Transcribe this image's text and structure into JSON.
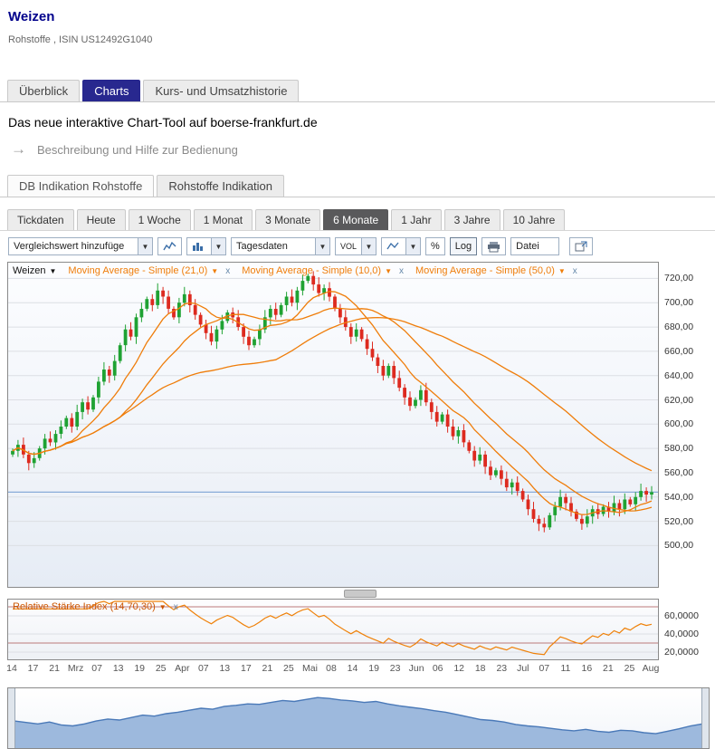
{
  "page": {
    "title": "Weizen",
    "subtitle": "Rohstoffe , ISIN US12492G1040"
  },
  "icons": {
    "dropdown_arrow": "▼",
    "close": "x",
    "help_arrow": "→"
  },
  "tabs": {
    "items": [
      {
        "label": "Überblick"
      },
      {
        "label": "Charts"
      },
      {
        "label": "Kurs- und Umsatzhistorie"
      }
    ]
  },
  "intro": {
    "headline": "Das neue interaktive Chart-Tool auf boerse-frankfurt.de",
    "help_link": "Beschreibung und Hilfe zur Bedienung"
  },
  "indication_tabs": {
    "items": [
      {
        "label": "DB Indikation Rohstoffe"
      },
      {
        "label": "Rohstoffe Indikation"
      }
    ]
  },
  "range_tabs": {
    "items": [
      "Tickdaten",
      "Heute",
      "1 Woche",
      "1 Monat",
      "3 Monate",
      "6 Monate",
      "1 Jahr",
      "3 Jahre",
      "10 Jahre"
    ],
    "active": "6 Monate"
  },
  "toolbar": {
    "compare_select": "Vergleichswert hinzufüge",
    "period_select": "Tagesdaten",
    "volume_select": "VOL",
    "percent_button": "%",
    "log_button": "Log",
    "file_button": "Datei"
  },
  "chart": {
    "legend_main": "Weizen",
    "legend_ma": [
      "Moving Average - Simple (21,0)",
      "Moving Average - Simple (10,0)",
      "Moving Average - Simple (50,0)"
    ]
  },
  "rsi": {
    "legend": "Relative Stärke Index (14,70,30)"
  },
  "colors": {
    "accent_tab": "#28288f",
    "range_active_bg": "#59595b",
    "candle_up": "#1fa233",
    "candle_down": "#dd2a1f",
    "ma_line": "#ef7d0a",
    "rsi_line": "#ef8109",
    "rsi_level_line": "#a85050",
    "rsi_legend": "#cc5500",
    "grid_line": "#dcdfe4",
    "last_price_line": "#88abd8",
    "navigator_fill": "#9db9dd",
    "navigator_stroke": "#4a79b8"
  },
  "chart_data": {
    "type": "candlestick",
    "instrument": "Weizen",
    "period": "6 Monate",
    "interval": "Tagesdaten",
    "ylim": [
      466,
      733
    ],
    "y_ticks": [
      720,
      700,
      680,
      660,
      640,
      620,
      600,
      580,
      560,
      540,
      520,
      500
    ],
    "y_tick_labels": [
      "720,00",
      "700,00",
      "680,00",
      "660,00",
      "640,00",
      "620,00",
      "600,00",
      "580,00",
      "560,00",
      "540,00",
      "520,00",
      "500,00"
    ],
    "x_labels": [
      "14",
      "17",
      "21",
      "Mrz",
      "07",
      "13",
      "19",
      "25",
      "Apr",
      "07",
      "13",
      "17",
      "21",
      "25",
      "Mai",
      "08",
      "14",
      "19",
      "23",
      "Jun",
      "06",
      "12",
      "18",
      "23",
      "Jul",
      "07",
      "11",
      "16",
      "21",
      "25",
      "Aug"
    ],
    "first_open": 575,
    "closes": [
      578,
      583,
      575,
      568,
      572,
      580,
      588,
      585,
      592,
      598,
      605,
      598,
      610,
      618,
      612,
      622,
      635,
      645,
      640,
      652,
      665,
      678,
      672,
      688,
      695,
      703,
      698,
      710,
      705,
      695,
      688,
      700,
      707,
      698,
      690,
      682,
      675,
      668,
      678,
      685,
      692,
      688,
      680,
      672,
      665,
      670,
      678,
      688,
      695,
      690,
      698,
      705,
      700,
      710,
      718,
      722,
      715,
      708,
      712,
      705,
      695,
      688,
      680,
      672,
      678,
      670,
      662,
      655,
      648,
      640,
      648,
      638,
      630,
      622,
      615,
      620,
      628,
      618,
      610,
      602,
      608,
      598,
      590,
      595,
      585,
      578,
      570,
      575,
      565,
      558,
      562,
      555,
      548,
      552,
      545,
      538,
      530,
      522,
      518,
      515,
      525,
      532,
      540,
      535,
      528,
      522,
      518,
      524,
      530,
      526,
      532,
      528,
      535,
      530,
      538,
      534,
      540,
      545,
      542,
      544
    ],
    "ma_periods": [
      21,
      10,
      50
    ],
    "rsi": {
      "period": 14,
      "levels": [
        70,
        30
      ],
      "y_ticks": [
        60,
        40,
        20
      ],
      "y_tick_labels": [
        "60,0000",
        "40,0000",
        "20,0000"
      ]
    },
    "navigator": [
      48,
      45,
      42,
      46,
      40,
      38,
      42,
      48,
      52,
      50,
      55,
      60,
      58,
      63,
      66,
      70,
      74,
      72,
      78,
      80,
      83,
      82,
      86,
      90,
      88,
      92,
      96,
      94,
      91,
      89,
      86,
      88,
      83,
      79,
      76,
      73,
      69,
      66,
      61,
      56,
      51,
      49,
      46,
      41,
      38,
      36,
      33,
      30,
      28,
      31,
      27,
      25,
      29,
      28,
      24,
      22,
      27,
      32,
      38,
      42
    ]
  }
}
